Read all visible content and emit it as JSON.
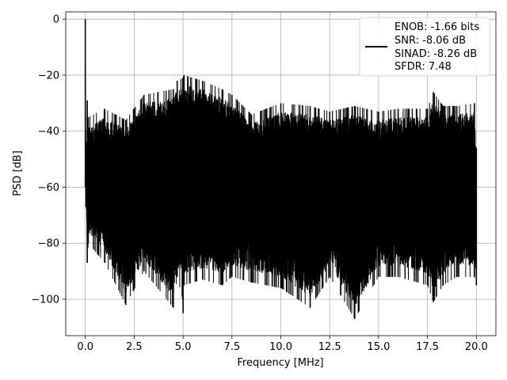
{
  "chart_data": {
    "type": "line",
    "title": "",
    "xlabel": "Frequency [MHz]",
    "ylabel": "PSD [dB]",
    "xlim": [
      -1,
      21
    ],
    "ylim": [
      -113,
      2.6
    ],
    "xticks": [
      0.0,
      2.5,
      5.0,
      7.5,
      10.0,
      12.5,
      15.0,
      17.5,
      20.0
    ],
    "xtick_labels": [
      "0.0",
      "2.5",
      "5.0",
      "7.5",
      "10.0",
      "12.5",
      "15.0",
      "17.5",
      "20.0"
    ],
    "yticks": [
      0,
      -20,
      -40,
      -60,
      -80,
      -100
    ],
    "ytick_labels": [
      "0",
      "−20",
      "−40",
      "−60",
      "−80",
      "−100"
    ],
    "grid": true,
    "legend_position": "top-right",
    "legend": [
      "ENOB: -1.66 bits",
      "SNR: -8.06 dB",
      "SINAD: -8.26 dB",
      "SFDR: 7.48"
    ],
    "series_color": "#000000",
    "series": [
      {
        "x": [
          0.0,
          0.03,
          0.1,
          0.15,
          1.0,
          2.07,
          3.0,
          4.5,
          4.7,
          4.98,
          5.0,
          5.05,
          6.0,
          7.0,
          7.5,
          8.5,
          10.0,
          11.5,
          12.5,
          13.78,
          15.0,
          16.0,
          17.5,
          17.8,
          18.3,
          19.0,
          19.9,
          20.0
        ],
        "top": [
          0,
          -45,
          -29,
          -35,
          -32,
          -36,
          -27,
          -25,
          -22,
          -21,
          -21,
          -20,
          -22,
          -25,
          -27,
          -34,
          -30,
          -31,
          -33,
          -31,
          -33,
          -32,
          -32,
          -26,
          -31,
          -31,
          -30,
          -46
        ],
        "bottom": [
          -60,
          -67,
          -87,
          -80,
          -87,
          -102,
          -90,
          -103,
          -92,
          -100,
          -105,
          -95,
          -93,
          -95,
          -92,
          -94,
          -96,
          -103,
          -92,
          -107,
          -92,
          -92,
          -95,
          -101,
          -95,
          -92,
          -92,
          -95
        ]
      }
    ]
  }
}
